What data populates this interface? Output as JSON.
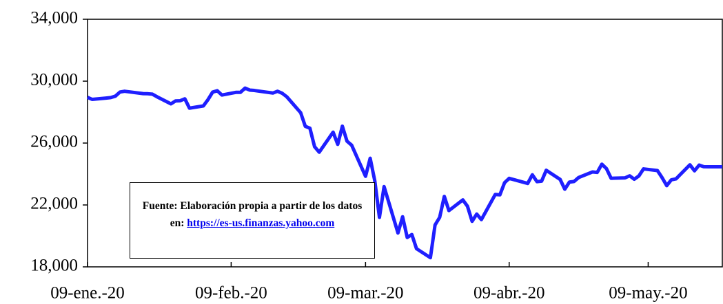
{
  "chart_data": {
    "type": "line",
    "x": [
      "2020-01-09",
      "2020-01-10",
      "2020-01-13",
      "2020-01-14",
      "2020-01-15",
      "2020-01-16",
      "2020-01-17",
      "2020-01-21",
      "2020-01-22",
      "2020-01-23",
      "2020-01-24",
      "2020-01-27",
      "2020-01-28",
      "2020-01-29",
      "2020-01-30",
      "2020-01-31",
      "2020-02-03",
      "2020-02-04",
      "2020-02-05",
      "2020-02-06",
      "2020-02-07",
      "2020-02-10",
      "2020-02-11",
      "2020-02-12",
      "2020-02-13",
      "2020-02-14",
      "2020-02-18",
      "2020-02-19",
      "2020-02-20",
      "2020-02-21",
      "2020-02-24",
      "2020-02-25",
      "2020-02-26",
      "2020-02-27",
      "2020-02-28",
      "2020-03-02",
      "2020-03-03",
      "2020-03-04",
      "2020-03-05",
      "2020-03-06",
      "2020-03-09",
      "2020-03-10",
      "2020-03-11",
      "2020-03-12",
      "2020-03-13",
      "2020-03-16",
      "2020-03-17",
      "2020-03-18",
      "2020-03-19",
      "2020-03-20",
      "2020-03-23",
      "2020-03-24",
      "2020-03-25",
      "2020-03-26",
      "2020-03-27",
      "2020-03-30",
      "2020-03-31",
      "2020-04-01",
      "2020-04-02",
      "2020-04-03",
      "2020-04-06",
      "2020-04-07",
      "2020-04-08",
      "2020-04-09",
      "2020-04-13",
      "2020-04-14",
      "2020-04-15",
      "2020-04-16",
      "2020-04-17",
      "2020-04-20",
      "2020-04-21",
      "2020-04-22",
      "2020-04-23",
      "2020-04-24",
      "2020-04-27",
      "2020-04-28",
      "2020-04-29",
      "2020-04-30",
      "2020-05-01",
      "2020-05-04",
      "2020-05-05",
      "2020-05-06",
      "2020-05-07",
      "2020-05-08",
      "2020-05-11",
      "2020-05-12",
      "2020-05-13",
      "2020-05-14",
      "2020-05-15",
      "2020-05-18",
      "2020-05-19",
      "2020-05-20",
      "2020-05-21",
      "2020-05-22",
      "2020-05-25"
    ],
    "series": [
      {
        "color": "#1f1fff",
        "values": [
          28956,
          28823,
          28907,
          28940,
          29030,
          29297,
          29348,
          29196,
          29186,
          29160,
          28990,
          28535,
          28723,
          28734,
          28859,
          28256,
          28399,
          28808,
          29291,
          29380,
          29103,
          29276,
          29277,
          29551,
          29424,
          29398,
          29232,
          29348,
          29220,
          28992,
          27961,
          27081,
          26957,
          25766,
          25409,
          26703,
          25917,
          27091,
          26121,
          25865,
          23851,
          25018,
          23553,
          21200,
          23186,
          20189,
          21237,
          19899,
          20087,
          19174,
          18592,
          20705,
          21200,
          22552,
          21637,
          22327,
          21917,
          20944,
          21413,
          21053,
          22680,
          22654,
          23434,
          23719,
          23391,
          23950,
          23505,
          23538,
          24242,
          23650,
          23019,
          23476,
          23516,
          23775,
          24134,
          24102,
          24634,
          24346,
          23724,
          23750,
          23883,
          23664,
          23876,
          24331,
          24222,
          23765,
          23248,
          23626,
          23685,
          24597,
          24207,
          24576,
          24474,
          24465,
          24465
        ]
      }
    ],
    "xlim": [
      "2020-01-09",
      "2020-05-25"
    ],
    "xticks": [
      {
        "value": "2020-01-09",
        "label": "09-ene.-20"
      },
      {
        "value": "2020-02-09",
        "label": "09-feb.-20"
      },
      {
        "value": "2020-03-09",
        "label": "09-mar.-20"
      },
      {
        "value": "2020-04-09",
        "label": "09-abr.-20"
      },
      {
        "value": "2020-05-09",
        "label": "09-may.-20"
      }
    ],
    "ylim": [
      18000,
      34000
    ],
    "yticks": [
      {
        "value": 18000,
        "label": "18,000"
      },
      {
        "value": 22000,
        "label": "22,000"
      },
      {
        "value": 26000,
        "label": "26,000"
      },
      {
        "value": 30000,
        "label": "30,000"
      },
      {
        "value": 34000,
        "label": "34,000"
      }
    ],
    "annotation": {
      "text": "Fuente: Elaboración propia a partir de los datos en: ",
      "link": "https://es-us.finanzas.yahoo.com"
    }
  }
}
